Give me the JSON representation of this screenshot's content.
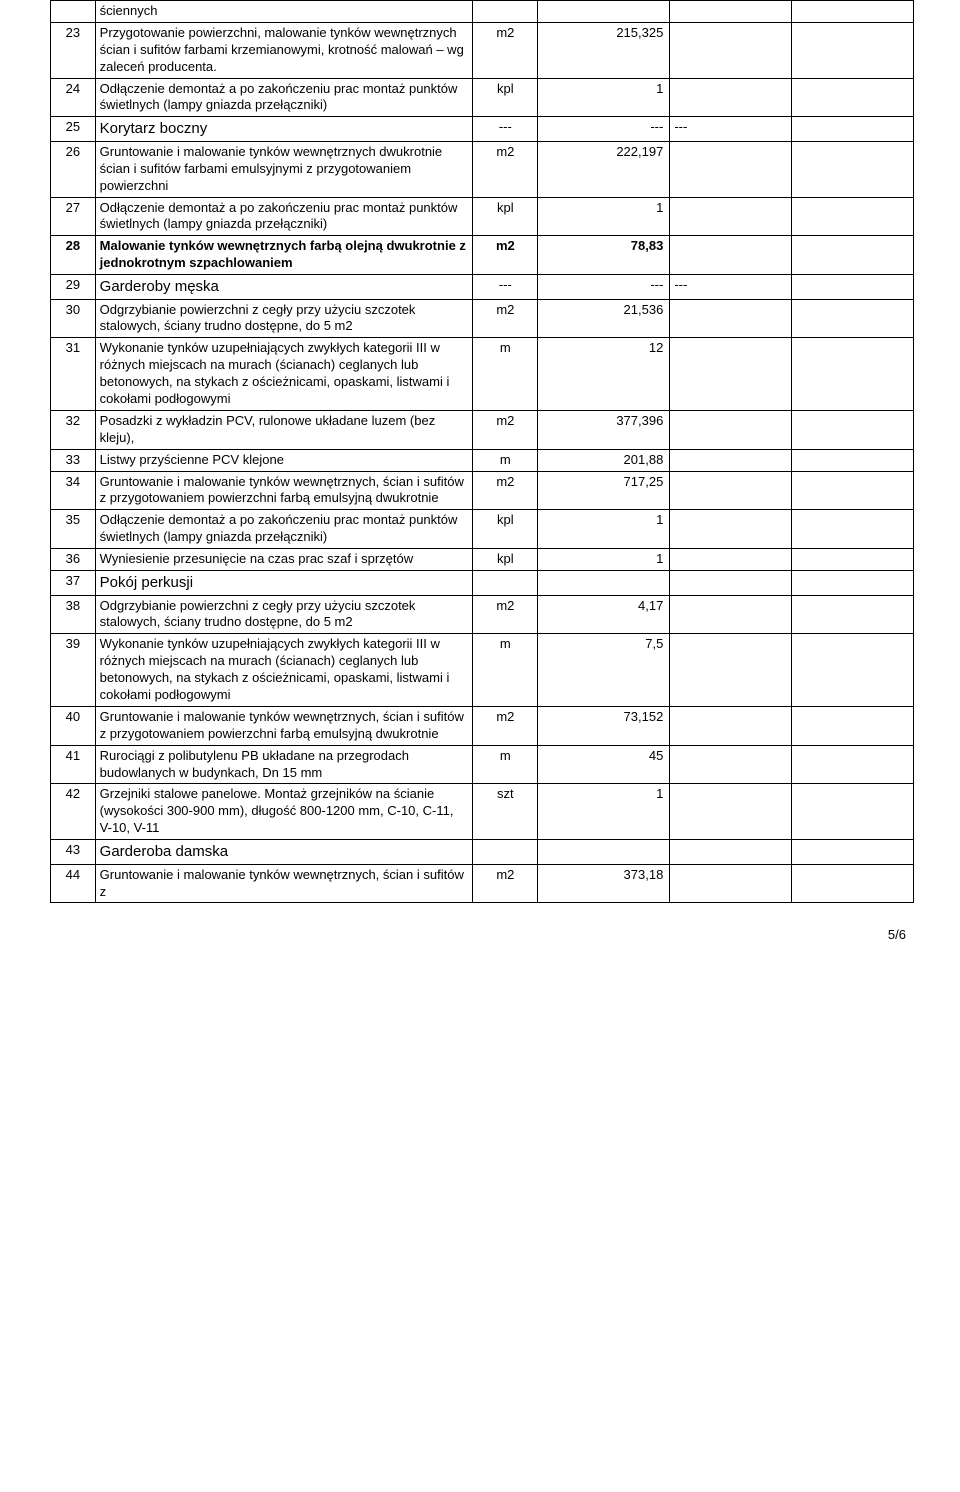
{
  "rows": [
    {
      "n": "",
      "desc": "ściennych",
      "unit": "",
      "val": "",
      "c5": "",
      "c6": ""
    },
    {
      "n": "23",
      "desc": "Przygotowanie powierzchni, malowanie tynków wewnętrznych ścian i sufitów farbami krzemianowymi, krotność malowań – wg zaleceń producenta.",
      "unit": "m2",
      "val": "215,325",
      "c5": "",
      "c6": ""
    },
    {
      "n": "24",
      "desc": "Odłączenie demontaż a po zakończeniu prac montaż punktów świetlnych (lampy gniazda przełączniki)",
      "unit": "kpl",
      "val": "1",
      "c5": "",
      "c6": ""
    },
    {
      "n": "25",
      "desc": "Korytarz boczny",
      "unit": "---",
      "val": "---",
      "c5": "---",
      "c6": "",
      "section": true
    },
    {
      "n": "26",
      "desc": "Gruntowanie i malowanie tynków wewnętrznych  dwukrotnie ścian i sufitów farbami emulsyjnymi z przygotowaniem powierzchni",
      "unit": "m2",
      "val": "222,197",
      "c5": "",
      "c6": ""
    },
    {
      "n": "27",
      "desc": "Odłączenie demontaż a po zakończeniu prac montaż punktów świetlnych (lampy gniazda przełączniki)",
      "unit": "kpl",
      "val": "1",
      "c5": "",
      "c6": ""
    },
    {
      "n": "28",
      "desc": "Malowanie tynków wewnętrznych farbą olejną dwukrotnie z jednokrotnym szpachlowaniem",
      "unit": "m2",
      "val": "78,83",
      "c5": "",
      "c6": "",
      "bold": true
    },
    {
      "n": "29",
      "desc": "Garderoby męska",
      "unit": "---",
      "val": "---",
      "c5": "---",
      "c6": "",
      "section": true
    },
    {
      "n": "30",
      "desc": "Odgrzybianie powierzchni z cegły przy użyciu szczotek stalowych, ściany trudno dostępne, do 5 m2",
      "unit": "m2",
      "val": "21,536",
      "c5": "",
      "c6": ""
    },
    {
      "n": "31",
      "desc": "Wykonanie tynków uzupełniających zwykłych kategorii III w różnych miejscach na murach (ścianach) ceglanych lub betonowych, na stykach z ościeżnicami, opaskami, listwami i cokołami podłogowymi",
      "unit": "m",
      "val": "12",
      "c5": "",
      "c6": ""
    },
    {
      "n": "32",
      "desc": "Posadzki z wykładzin PCV, rulonowe układane luzem (bez kleju),",
      "unit": "m2",
      "val": "377,396",
      "c5": "",
      "c6": ""
    },
    {
      "n": "33",
      "desc": "Listwy przyścienne PCV klejone",
      "unit": "m",
      "val": "201,88",
      "c5": "",
      "c6": ""
    },
    {
      "n": "34",
      "desc": "Gruntowanie i malowanie tynków wewnętrznych, ścian i sufitów z przygotowaniem powierzchni farbą emulsyjną dwukrotnie",
      "unit": "m2",
      "val": "717,25",
      "c5": "",
      "c6": ""
    },
    {
      "n": "35",
      "desc": "Odłączenie demontaż a po zakończeniu prac montaż punktów świetlnych (lampy gniazda przełączniki)",
      "unit": "kpl",
      "val": "1",
      "c5": "",
      "c6": ""
    },
    {
      "n": "36",
      "desc": "Wyniesienie przesunięcie na czas prac szaf i sprzętów",
      "unit": "kpl",
      "val": "1",
      "c5": "",
      "c6": ""
    },
    {
      "n": "37",
      "desc": "Pokój perkusji",
      "unit": "",
      "val": "",
      "c5": "",
      "c6": "",
      "section": true
    },
    {
      "n": "38",
      "desc": "Odgrzybianie powierzchni z cegły przy użyciu szczotek stalowych, ściany trudno dostępne, do 5 m2",
      "unit": "m2",
      "val": "4,17",
      "c5": "",
      "c6": ""
    },
    {
      "n": "39",
      "desc": "Wykonanie tynków uzupełniających zwykłych kategorii III w różnych miejscach na murach (ścianach) ceglanych lub betonowych, na stykach z ościeżnicami, opaskami, listwami i cokołami podłogowymi",
      "unit": "m",
      "val": "7,5",
      "c5": "",
      "c6": ""
    },
    {
      "n": "40",
      "desc": "Gruntowanie i malowanie tynków wewnętrznych, ścian i sufitów z przygotowaniem powierzchni farbą emulsyjną dwukrotnie",
      "unit": "m2",
      "val": "73,152",
      "c5": "",
      "c6": ""
    },
    {
      "n": "41",
      "desc": "Rurociągi z polibutylenu PB układane na przegrodach budowlanych w budynkach, Dn 15 mm",
      "unit": "m",
      "val": "45",
      "c5": "",
      "c6": ""
    },
    {
      "n": "42",
      "desc": "Grzejniki stalowe panelowe. Montaż grzejników na ścianie (wysokości 300-900 mm), długość 800-1200 mm, C-10, C-11, V-10, V-11",
      "unit": "szt",
      "val": "1",
      "c5": "",
      "c6": ""
    },
    {
      "n": "43",
      "desc": "Garderoba damska",
      "unit": "",
      "val": "",
      "c5": "",
      "c6": "",
      "section": true
    },
    {
      "n": "44",
      "desc": "Gruntowanie i malowanie tynków wewnętrznych, ścian i sufitów z",
      "unit": "m2",
      "val": "373,18",
      "c5": "",
      "c6": ""
    }
  ],
  "footer": "5/6"
}
